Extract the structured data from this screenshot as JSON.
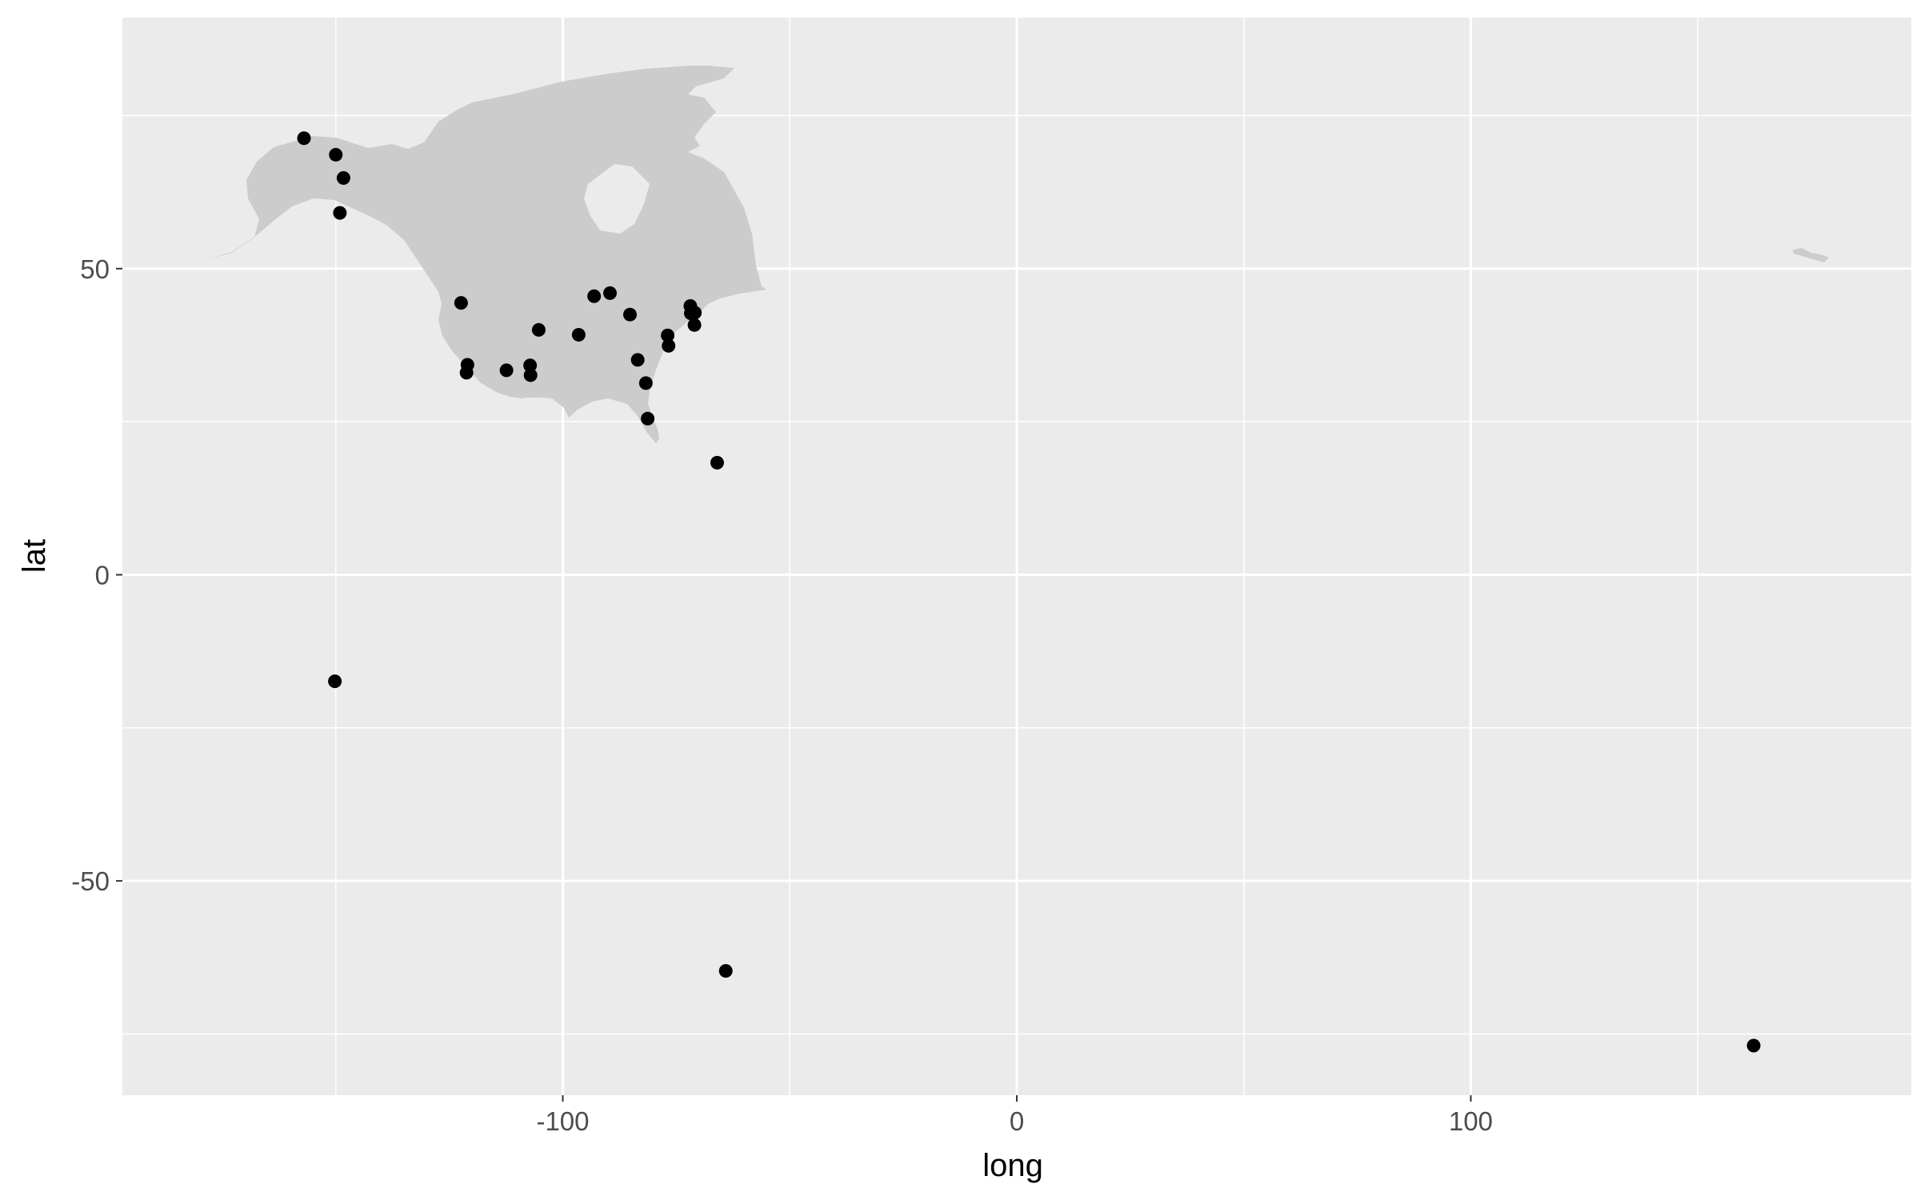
{
  "chart_data": {
    "type": "scatter",
    "title": "",
    "xlabel": "long",
    "ylabel": "lat",
    "xlim": [
      -197,
      197
    ],
    "ylim": [
      -85,
      91
    ],
    "x_ticks": [
      -100,
      0,
      100
    ],
    "y_ticks": [
      -50,
      0,
      50
    ],
    "x_tick_labels": [
      "-100",
      "0",
      "100"
    ],
    "y_tick_labels": [
      "-50",
      "0",
      "50"
    ],
    "x_minor_ticks": [
      -150,
      -50,
      50,
      150
    ],
    "y_minor_ticks": [
      -75,
      -25,
      25,
      75
    ],
    "grid": true,
    "legend": "none",
    "colors": {
      "panel_background": "#ebebeb",
      "grid_line": "#ffffff",
      "landmass": "#cccccc",
      "point": "#000000",
      "tick_text": "#4d4d4d",
      "tick_mark": "#333333"
    },
    "background_layer": {
      "name": "North America landmass",
      "color": "#cccccc"
    },
    "series": [
      {
        "points": [
          {
            "long": -157,
            "lat": 71.3
          },
          {
            "long": -150,
            "lat": 68.6
          },
          {
            "long": -148.3,
            "lat": 64.8
          },
          {
            "long": -149.1,
            "lat": 59.1
          },
          {
            "long": -122.4,
            "lat": 44.4
          },
          {
            "long": -121,
            "lat": 34.3
          },
          {
            "long": -121.2,
            "lat": 33
          },
          {
            "long": -112.4,
            "lat": 33.4
          },
          {
            "long": -107.2,
            "lat": 34.2
          },
          {
            "long": -107.1,
            "lat": 32.6
          },
          {
            "long": -105.3,
            "lat": 40
          },
          {
            "long": -96.5,
            "lat": 39.2
          },
          {
            "long": -93.1,
            "lat": 45.5
          },
          {
            "long": -89.6,
            "lat": 46
          },
          {
            "long": -85.2,
            "lat": 42.5
          },
          {
            "long": -83.5,
            "lat": 35.1
          },
          {
            "long": -81.7,
            "lat": 31.3
          },
          {
            "long": -81.3,
            "lat": 25.5
          },
          {
            "long": -76.9,
            "lat": 39.1
          },
          {
            "long": -76.7,
            "lat": 37.4
          },
          {
            "long": -71.9,
            "lat": 43.9
          },
          {
            "long": -71.8,
            "lat": 42.7
          },
          {
            "long": -70.9,
            "lat": 42.8
          },
          {
            "long": -71,
            "lat": 40.8
          },
          {
            "long": -66,
            "lat": 18.3
          },
          {
            "long": -150.2,
            "lat": -17.4
          },
          {
            "long": -64.1,
            "lat": -64.7
          },
          {
            "long": 162.3,
            "lat": -76.9
          }
        ]
      }
    ]
  }
}
